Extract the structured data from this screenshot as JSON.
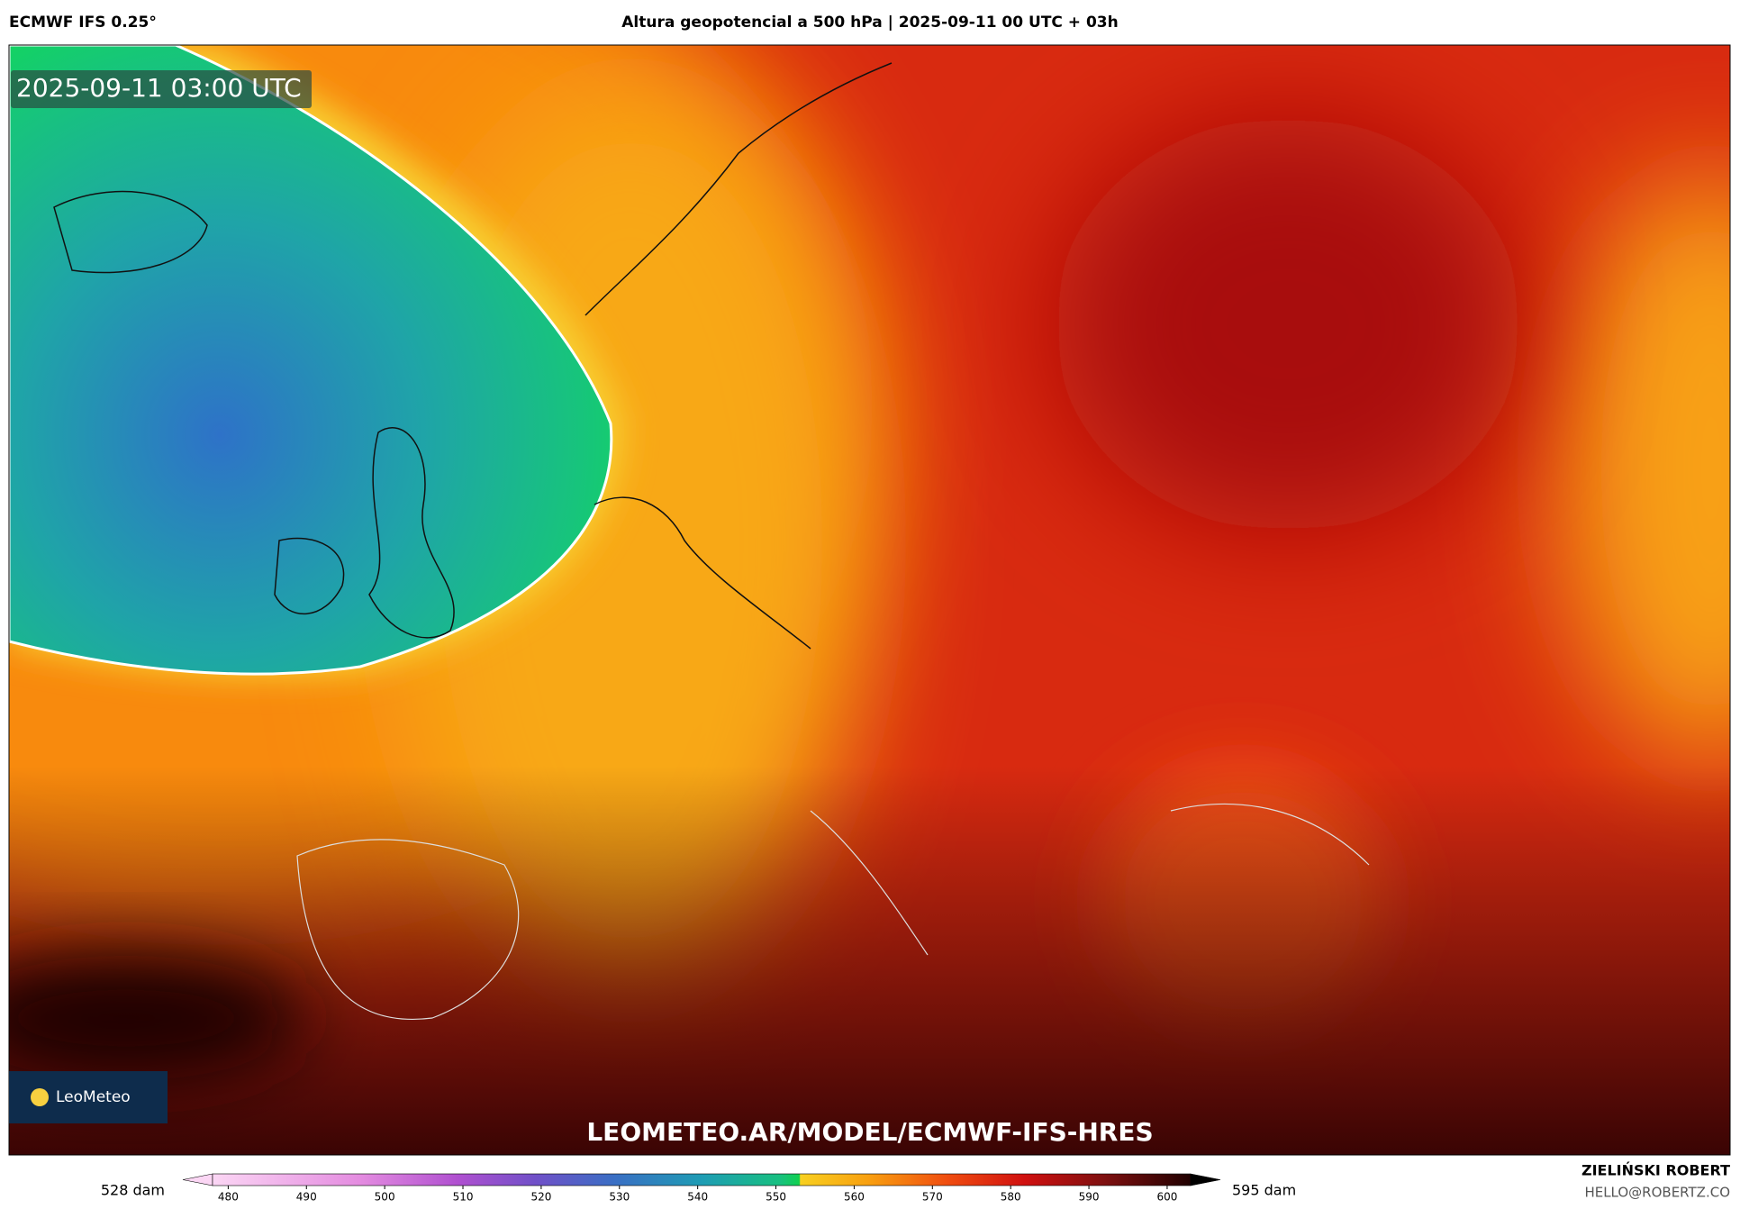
{
  "header": {
    "model": "ECMWF IFS 0.25°",
    "title": "Altura geopotencial a 500 hPa | 2025-09-11 00 UTC + 03h"
  },
  "map": {
    "timestamp": "2025-09-11 03:00 UTC",
    "logo": "LeoMeteo",
    "url": "LEOMETEO.AR/MODEL/ECMWF-IFS-HRES"
  },
  "colorbar": {
    "min_label": "528 dam",
    "max_label": "595 dam",
    "lim": [
      478,
      603
    ],
    "ticks": [
      480,
      490,
      500,
      510,
      520,
      530,
      540,
      550,
      560,
      570,
      580,
      590,
      600
    ]
  },
  "footer": {
    "author": "ZIELIŃSKI ROBERT",
    "email": "HELLO@ROBERTZ.CO"
  }
}
